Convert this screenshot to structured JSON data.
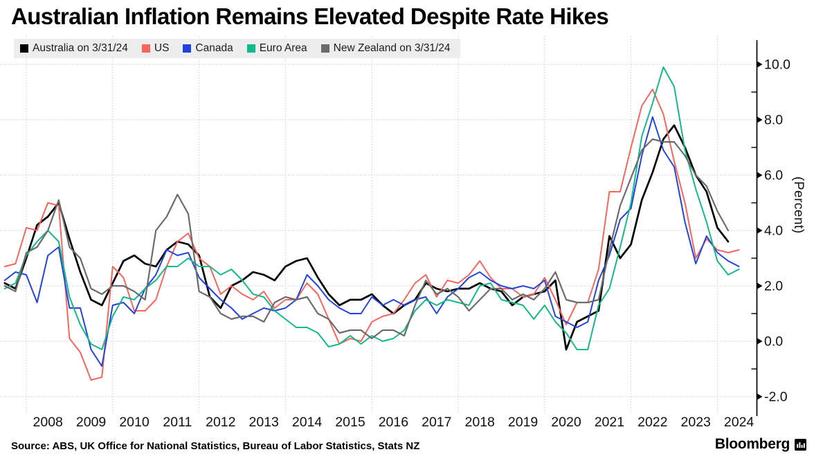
{
  "title": "Australian Inflation Remains Elevated Despite Rate Hikes",
  "source": "Source: ABS, UK Office for National Statistics, Bureau of Labor Statistics, Stats NZ",
  "brand": {
    "name": "Bloomberg"
  },
  "colors": {
    "australia": "#000000",
    "us": "#f8655c",
    "canada": "#2244dd",
    "euro_area": "#12b98b",
    "new_zealand": "#6b6b6b",
    "grid": "#c8c8c8",
    "axis": "#000000",
    "legend_bg": "#ededed"
  },
  "legend": [
    {
      "label": "Australia on 3/31/24",
      "color": "#000000"
    },
    {
      "label": "US",
      "color": "#f8655c"
    },
    {
      "label": "Canada",
      "color": "#2244dd"
    },
    {
      "label": "Euro Area",
      "color": "#12b98b"
    },
    {
      "label": "New Zealand on 3/31/24",
      "color": "#6b6b6b"
    }
  ],
  "chart_data": {
    "type": "line",
    "title": "Australian Inflation Remains Elevated Despite Rate Hikes",
    "xlabel": "",
    "ylabel": "(Percent)",
    "ylim": [
      -2.7,
      10.8
    ],
    "grid": true,
    "legend_position": "top-left",
    "ytick_values": [
      10,
      8,
      6,
      4,
      2,
      0,
      -2
    ],
    "ytick_labels": [
      "10.0",
      "8.0",
      "6.0",
      "4.0",
      "2.0",
      "0.0",
      "-2.0"
    ],
    "ytick_minor_values": [
      9,
      7,
      5,
      3,
      1,
      -1
    ],
    "xtick_years": [
      2008,
      2009,
      2010,
      2011,
      2012,
      2013,
      2014,
      2015,
      2016,
      2017,
      2018,
      2019,
      2020,
      2021,
      2022,
      2023,
      2024
    ],
    "xgrid_years": [
      2008,
      2010,
      2012,
      2014,
      2016,
      2018,
      2020,
      2022,
      2024
    ],
    "x_unit": "year_quarterly",
    "x_start": 2007.5,
    "x_step": 0.25,
    "series": [
      {
        "name": "Australia on 3/31/24",
        "color": "#000000",
        "width": 2.7,
        "values": [
          2.1,
          1.9,
          3.0,
          4.2,
          4.5,
          5.0,
          3.7,
          2.5,
          1.5,
          1.3,
          2.1,
          2.9,
          3.1,
          2.8,
          2.7,
          3.3,
          3.6,
          3.5,
          3.1,
          1.6,
          1.2,
          2.0,
          2.2,
          2.5,
          2.4,
          2.2,
          2.7,
          2.9,
          3.0,
          2.3,
          1.7,
          1.3,
          1.5,
          1.5,
          1.7,
          1.3,
          1.0,
          1.3,
          1.5,
          2.1,
          1.9,
          1.8,
          1.9,
          1.9,
          2.1,
          1.9,
          1.8,
          1.3,
          1.6,
          1.7,
          1.8,
          2.2,
          -0.3,
          0.7,
          0.9,
          1.1,
          3.8,
          3.0,
          3.5,
          5.1,
          6.1,
          7.3,
          7.8,
          7.0,
          6.0,
          5.4,
          4.1,
          3.6
        ]
      },
      {
        "name": "US",
        "color": "#f8655c",
        "width": 2.0,
        "values": [
          2.7,
          2.8,
          4.1,
          4.0,
          5.0,
          4.9,
          0.1,
          -0.4,
          -1.4,
          -1.3,
          2.7,
          2.3,
          1.1,
          1.1,
          1.5,
          2.7,
          3.6,
          3.9,
          3.0,
          2.7,
          1.7,
          2.0,
          1.7,
          1.5,
          1.8,
          1.2,
          1.5,
          1.5,
          2.1,
          1.7,
          0.8,
          -0.1,
          0.1,
          0.0,
          0.7,
          0.9,
          1.0,
          1.5,
          2.1,
          2.4,
          1.6,
          2.2,
          2.1,
          2.4,
          2.9,
          2.3,
          1.9,
          1.9,
          1.6,
          1.7,
          2.3,
          1.5,
          0.6,
          1.4,
          1.4,
          2.6,
          5.4,
          5.4,
          7.0,
          8.5,
          9.1,
          8.2,
          6.5,
          5.0,
          3.0,
          3.7,
          3.3,
          3.2,
          3.3
        ]
      },
      {
        "name": "Canada",
        "color": "#2244dd",
        "width": 2.0,
        "values": [
          2.2,
          2.5,
          2.4,
          1.4,
          3.1,
          3.4,
          1.2,
          1.2,
          -0.3,
          -0.9,
          1.3,
          1.4,
          1.0,
          1.9,
          2.4,
          3.3,
          3.1,
          3.2,
          2.3,
          1.9,
          1.5,
          1.2,
          0.8,
          1.0,
          1.2,
          1.1,
          1.2,
          1.5,
          2.4,
          2.0,
          1.5,
          1.2,
          1.0,
          1.0,
          1.6,
          1.3,
          1.5,
          1.3,
          1.5,
          1.6,
          1.0,
          1.6,
          1.9,
          2.3,
          2.5,
          2.2,
          2.0,
          1.9,
          2.0,
          1.9,
          2.2,
          0.9,
          0.7,
          0.5,
          0.7,
          2.2,
          3.1,
          4.4,
          4.8,
          6.7,
          8.1,
          6.9,
          6.3,
          4.3,
          2.8,
          3.8,
          3.2,
          2.9,
          2.7
        ]
      },
      {
        "name": "Euro Area",
        "color": "#12b98b",
        "width": 2.0,
        "values": [
          1.9,
          2.1,
          3.1,
          3.6,
          4.0,
          3.6,
          1.6,
          0.6,
          -0.1,
          -0.3,
          0.9,
          1.6,
          1.5,
          1.9,
          2.2,
          2.7,
          2.7,
          3.0,
          2.7,
          2.7,
          2.4,
          2.6,
          2.2,
          1.7,
          1.6,
          1.1,
          0.8,
          0.5,
          0.5,
          0.3,
          -0.2,
          -0.1,
          0.2,
          -0.1,
          0.2,
          0.0,
          0.1,
          0.4,
          1.1,
          1.5,
          1.3,
          1.5,
          1.4,
          1.3,
          2.0,
          2.1,
          1.5,
          1.4,
          1.3,
          0.8,
          1.3,
          0.7,
          0.3,
          -0.3,
          -0.3,
          1.3,
          1.9,
          3.4,
          5.0,
          7.4,
          8.6,
          9.9,
          9.2,
          6.9,
          5.5,
          4.3,
          2.9,
          2.4,
          2.6
        ]
      },
      {
        "name": "New Zealand on 3/31/24",
        "color": "#6b6b6b",
        "width": 2.2,
        "values": [
          2.0,
          1.8,
          3.2,
          3.4,
          4.0,
          5.1,
          3.4,
          3.0,
          1.9,
          1.7,
          2.0,
          2.0,
          1.8,
          1.5,
          4.0,
          4.5,
          5.3,
          4.6,
          1.8,
          1.6,
          1.0,
          0.8,
          0.9,
          0.9,
          0.7,
          1.4,
          1.6,
          1.5,
          1.6,
          1.0,
          0.8,
          0.3,
          0.4,
          0.4,
          0.1,
          0.4,
          0.4,
          0.2,
          1.3,
          2.2,
          1.7,
          1.9,
          1.6,
          1.1,
          1.5,
          1.9,
          1.9,
          1.5,
          1.7,
          1.5,
          1.9,
          2.5,
          1.5,
          1.4,
          1.4,
          1.5,
          3.3,
          4.9,
          5.9,
          6.9,
          7.3,
          7.2,
          7.2,
          6.7,
          6.0,
          5.6,
          4.7,
          4.0
        ]
      }
    ]
  }
}
